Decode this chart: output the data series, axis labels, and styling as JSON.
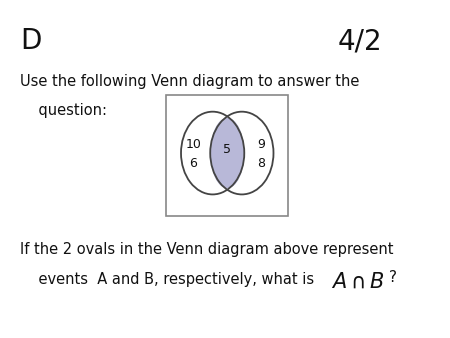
{
  "title_left": "D",
  "title_right": "4/2",
  "text_line1": "Use the following Venn diagram to answer the",
  "text_line2": "    question:",
  "bottom_line1": "If the 2 ovals in the Venn diagram above represent",
  "bottom_line2": "    events  A and B, respectively, what is",
  "venn_left_numbers": [
    "10",
    "6"
  ],
  "venn_center_number": "5",
  "venn_right_numbers": [
    "9",
    "8"
  ],
  "intersection_color": "#b8b8d8",
  "oval_edgecolor": "#444444",
  "box_edgecolor": "#888888",
  "background_color": "#ffffff",
  "text_color": "#111111",
  "fig_width": 4.5,
  "fig_height": 3.38,
  "dpi": 100
}
